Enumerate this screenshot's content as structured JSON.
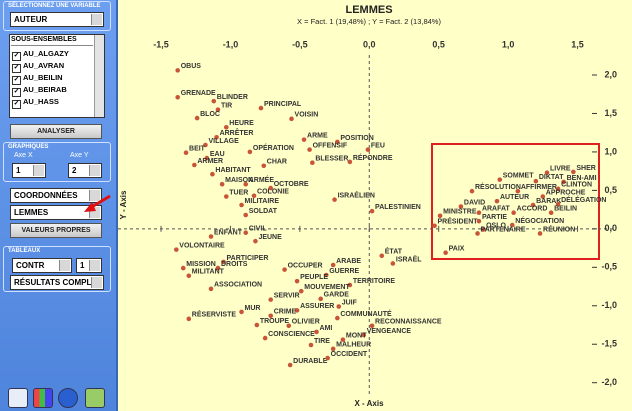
{
  "panel": {
    "variable_header": "SÉLECTIONNEZ UNE VARIABLE",
    "variable": "AUTEUR",
    "subsets_header": "SOUS-ENSEMBLES",
    "subsets": [
      "AU_ALGAZY",
      "AU_AVRAN",
      "AU_BEILIN",
      "AU_BEIRAB",
      "AU_HASS"
    ],
    "analyze": "ANALYSER",
    "graphs_header": "GRAPHIQUES",
    "axis_x_label": "Axe X",
    "axis_x": "1",
    "axis_y_label": "Axe Y",
    "axis_y": "2",
    "display": "COORDONNÉES",
    "item": "LEMMES",
    "eigen_button": "VALEURS PROPRES",
    "tables_header": "TABLEAUX",
    "table": "CONTR",
    "table_axis": "1",
    "results": "RÉSULTATS COMPL"
  },
  "chart_data": {
    "type": "scatter",
    "title": "LEMMES",
    "subtitle": "X = Fact. 1 (19,48%) ; Y = Fact. 2 (13,84%)",
    "x_label": "X - Axis",
    "y_label": "Y - Axis",
    "color": "#c8543a",
    "xlim": [
      -1.81,
      1.77
    ],
    "ylim": [
      -2.16,
      2.26
    ],
    "xticks": [
      {
        "value": -1.5,
        "label": "-1,5"
      },
      {
        "value": -1.0,
        "label": "-1,0"
      },
      {
        "value": -0.5,
        "label": "-0,5"
      },
      {
        "value": 0,
        "label": "0,0"
      },
      {
        "value": 0.5,
        "label": "0,5"
      },
      {
        "value": 1.0,
        "label": "1,0"
      },
      {
        "value": 1.5,
        "label": "1,5"
      }
    ],
    "yticks": [
      {
        "value": 2.0,
        "label": "2,0"
      },
      {
        "value": 1.5,
        "label": "1,5"
      },
      {
        "value": 1.0,
        "label": "1,0"
      },
      {
        "value": 0.5,
        "label": "0,5"
      },
      {
        "value": 0,
        "label": "0,0"
      },
      {
        "value": -0.5,
        "label": "-0,5"
      },
      {
        "value": -1.0,
        "label": "-1,0"
      },
      {
        "value": -1.5,
        "label": "-1,5"
      },
      {
        "value": -2.0,
        "label": "-2,0"
      }
    ],
    "labels": [
      "OBUS",
      "GRENADE",
      "BLINDER",
      "TIR",
      "PRINCIPAL",
      "BLOC",
      "VOISIN",
      "HEURE",
      "ARRÊTER",
      "ARME",
      "POSITION",
      "VILLAGE",
      "OFFENSIF",
      "FEU",
      "BEIT",
      "OPÉRATION",
      "EAU",
      "BLESSER",
      "RÉPONDRE",
      "ARMER",
      "CHAR",
      "HABITANT",
      "MAISON",
      "ARMÉE",
      "OCTOBRE",
      "TUER",
      "COLONIE",
      "MILITAIRE",
      "SOLDAT",
      "ISRAÉLIEN",
      "PALESTINIEN",
      "ENFANT",
      "CIVIL",
      "JEUNE",
      "VOLONTAIRE",
      "PARTICIPER",
      "MISSION",
      "DROITS",
      "MILITANT",
      "ASSOCIATION",
      "ÉTAT",
      "ISRAËL",
      "ARABE",
      "OCCUPER",
      "GUERRE",
      "PEUPLE",
      "TERRITOIRE",
      "MOUVEMENT",
      "SERVIR",
      "GARDE",
      "MUR",
      "ASSURER",
      "JUIF",
      "RÉSERVISTE",
      "CRIME",
      "COMMUNAUTÉ",
      "TROUPE",
      "OLIVIER",
      "AMI",
      "RECONNAISSANCE",
      "VENGEANCE",
      "CONSCIENCE",
      "MONT",
      "TIRE",
      "MALHEUR",
      "DURABLE",
      "OCCIDENT",
      "LIVRE",
      "SHER",
      "SOMMET",
      "DIKTAT",
      "BEN-AMI",
      "RÉSOLUTION",
      "AFFIRMER",
      "CLINTON",
      "APPROCHE",
      "AUTEUR",
      "BARAK",
      "DÉLÉGATION",
      "DAVID",
      "ARAFAT",
      "ACCORD",
      "BEILIN",
      "MINISTRE",
      "PARTIE",
      "NÉGOCIATION",
      "OSLO",
      "PRÉSIDENT",
      "PARTENAIRE",
      "RÉUNION",
      "PAIX"
    ],
    "x": [
      -1.38,
      -1.38,
      -1.12,
      -1.09,
      -0.78,
      -1.24,
      -0.56,
      -1.03,
      -1.1,
      -0.47,
      -0.23,
      -1.18,
      -0.43,
      -0.01,
      -1.32,
      -0.86,
      -1.17,
      -0.41,
      -0.14,
      -1.26,
      -0.76,
      -1.13,
      -1.06,
      -0.89,
      -0.71,
      -1.03,
      -0.83,
      -0.92,
      -0.89,
      -0.25,
      0.02,
      -1.14,
      -0.89,
      -0.82,
      -1.39,
      -1.05,
      -1.34,
      -1.09,
      -1.3,
      -1.14,
      0.09,
      0.17,
      -0.26,
      -0.61,
      -0.31,
      -0.52,
      -0.14,
      -0.49,
      -0.71,
      -0.35,
      -0.92,
      -0.52,
      -0.22,
      -1.3,
      -0.71,
      -0.23,
      -0.81,
      -0.58,
      -0.38,
      0.02,
      -0.04,
      -0.75,
      -0.19,
      -0.42,
      -0.26,
      -0.57,
      -0.3,
      1.28,
      1.47,
      0.94,
      1.2,
      1.4,
      0.74,
      1.07,
      1.36,
      1.25,
      0.92,
      1.18,
      1.36,
      0.66,
      0.79,
      1.04,
      1.31,
      0.51,
      0.79,
      1.03,
      0.82,
      0.47,
      0.78,
      1.23,
      0.55
    ],
    "values": [
      2.06,
      1.71,
      1.66,
      1.55,
      1.57,
      1.44,
      1.43,
      1.32,
      1.19,
      1.16,
      1.13,
      1.09,
      1.03,
      1.03,
      0.99,
      1.0,
      0.92,
      0.86,
      0.87,
      0.83,
      0.82,
      0.71,
      0.58,
      0.58,
      0.53,
      0.42,
      0.43,
      0.31,
      0.18,
      0.38,
      0.23,
      -0.1,
      -0.05,
      -0.16,
      -0.27,
      -0.43,
      -0.51,
      -0.51,
      -0.61,
      -0.78,
      -0.35,
      -0.45,
      -0.47,
      -0.53,
      -0.6,
      -0.68,
      -0.73,
      -0.81,
      -0.92,
      -0.91,
      -1.08,
      -1.06,
      -1.01,
      -1.17,
      -1.13,
      -1.16,
      -1.25,
      -1.26,
      -1.34,
      -1.26,
      -1.38,
      -1.42,
      -1.44,
      -1.51,
      -1.56,
      -1.77,
      -1.68,
      0.73,
      0.74,
      0.64,
      0.62,
      0.61,
      0.49,
      0.49,
      0.52,
      0.42,
      0.36,
      0.31,
      0.32,
      0.29,
      0.21,
      0.21,
      0.21,
      0.17,
      0.1,
      0.05,
      -0.01,
      0.04,
      -0.06,
      -0.06,
      -0.31
    ]
  }
}
